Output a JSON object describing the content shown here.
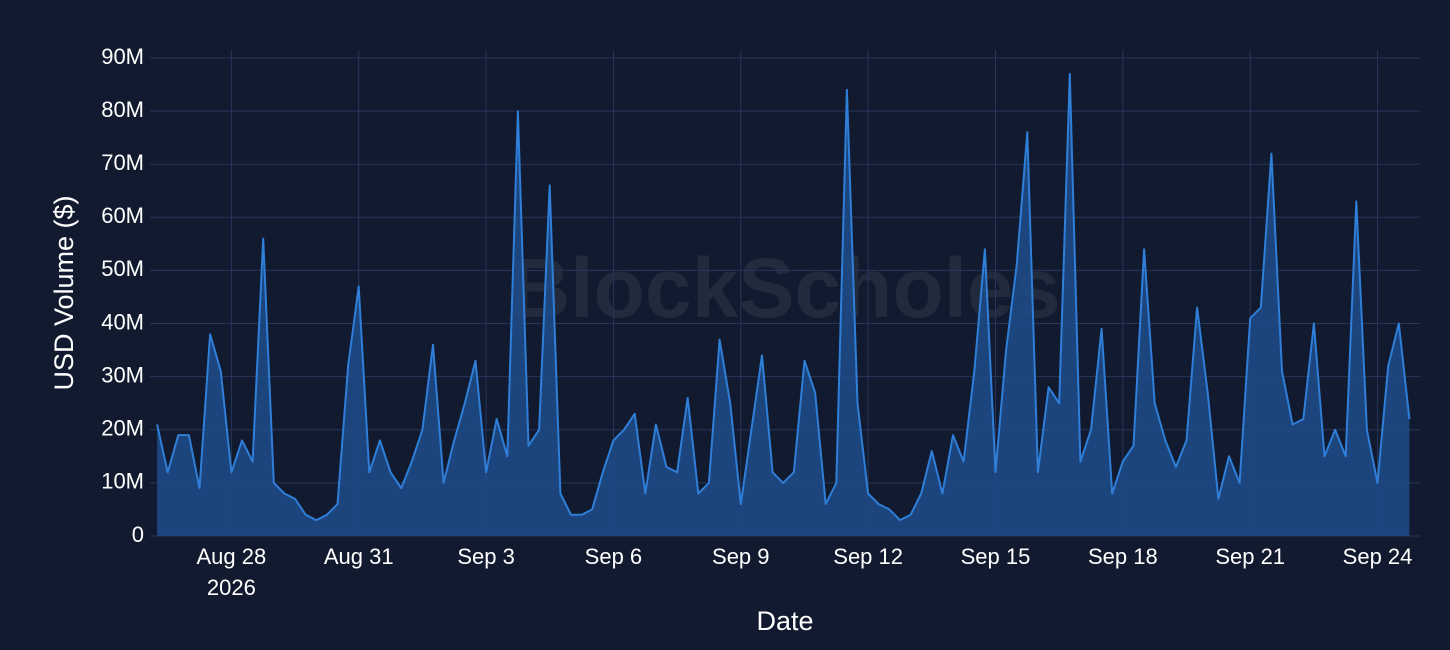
{
  "chart_data": {
    "type": "area",
    "y_label": "USD Volume ($)",
    "x_label": "Date",
    "watermark": "BlockScholes",
    "x": [
      "2026-08-26 06:00",
      "2026-08-26 12:00",
      "2026-08-26 18:00",
      "2026-08-27 00:00",
      "2026-08-27 06:00",
      "2026-08-27 12:00",
      "2026-08-27 18:00",
      "2026-08-28 00:00",
      "2026-08-28 06:00",
      "2026-08-28 12:00",
      "2026-08-28 18:00",
      "2026-08-29 00:00",
      "2026-08-29 06:00",
      "2026-08-29 12:00",
      "2026-08-29 18:00",
      "2026-08-30 00:00",
      "2026-08-30 06:00",
      "2026-08-30 12:00",
      "2026-08-30 18:00",
      "2026-08-31 00:00",
      "2026-08-31 06:00",
      "2026-08-31 12:00",
      "2026-08-31 18:00",
      "2026-09-01 00:00",
      "2026-09-01 06:00",
      "2026-09-01 12:00",
      "2026-09-01 18:00",
      "2026-09-02 00:00",
      "2026-09-02 06:00",
      "2026-09-02 12:00",
      "2026-09-02 18:00",
      "2026-09-03 00:00",
      "2026-09-03 06:00",
      "2026-09-03 12:00",
      "2026-09-03 18:00",
      "2026-09-04 00:00",
      "2026-09-04 06:00",
      "2026-09-04 12:00",
      "2026-09-04 18:00",
      "2026-09-05 00:00",
      "2026-09-05 06:00",
      "2026-09-05 12:00",
      "2026-09-05 18:00",
      "2026-09-06 00:00",
      "2026-09-06 06:00",
      "2026-09-06 12:00",
      "2026-09-06 18:00",
      "2026-09-07 00:00",
      "2026-09-07 06:00",
      "2026-09-07 12:00",
      "2026-09-07 18:00",
      "2026-09-08 00:00",
      "2026-09-08 06:00",
      "2026-09-08 12:00",
      "2026-09-08 18:00",
      "2026-09-09 00:00",
      "2026-09-09 06:00",
      "2026-09-09 12:00",
      "2026-09-09 18:00",
      "2026-09-10 00:00",
      "2026-09-10 06:00",
      "2026-09-10 12:00",
      "2026-09-10 18:00",
      "2026-09-11 00:00",
      "2026-09-11 06:00",
      "2026-09-11 12:00",
      "2026-09-11 18:00",
      "2026-09-12 00:00",
      "2026-09-12 06:00",
      "2026-09-12 12:00",
      "2026-09-12 18:00",
      "2026-09-13 00:00",
      "2026-09-13 06:00",
      "2026-09-13 12:00",
      "2026-09-13 18:00",
      "2026-09-14 00:00",
      "2026-09-14 06:00",
      "2026-09-14 12:00",
      "2026-09-14 18:00",
      "2026-09-15 00:00",
      "2026-09-15 06:00",
      "2026-09-15 12:00",
      "2026-09-15 18:00",
      "2026-09-16 00:00",
      "2026-09-16 06:00",
      "2026-09-16 12:00",
      "2026-09-16 18:00",
      "2026-09-17 00:00",
      "2026-09-17 06:00",
      "2026-09-17 12:00",
      "2026-09-17 18:00",
      "2026-09-18 00:00",
      "2026-09-18 06:00",
      "2026-09-18 12:00",
      "2026-09-18 18:00",
      "2026-09-19 00:00",
      "2026-09-19 06:00",
      "2026-09-19 12:00",
      "2026-09-19 18:00",
      "2026-09-20 00:00",
      "2026-09-20 06:00",
      "2026-09-20 12:00",
      "2026-09-20 18:00",
      "2026-09-21 00:00",
      "2026-09-21 06:00",
      "2026-09-21 12:00",
      "2026-09-21 18:00",
      "2026-09-22 00:00",
      "2026-09-22 06:00",
      "2026-09-22 12:00",
      "2026-09-22 18:00",
      "2026-09-23 00:00",
      "2026-09-23 06:00",
      "2026-09-23 12:00",
      "2026-09-23 18:00",
      "2026-09-24 00:00",
      "2026-09-24 06:00",
      "2026-09-24 12:00",
      "2026-09-24 18:00"
    ],
    "series": [
      {
        "color": "#2f7ed8",
        "fill": "#1f4a86",
        "values": [
          21,
          12,
          19,
          19,
          9,
          38,
          31,
          12,
          18,
          14,
          56,
          10,
          8,
          7,
          4,
          3,
          4,
          6,
          32,
          47,
          12,
          18,
          12,
          9,
          14,
          20,
          36,
          10,
          18,
          25,
          33,
          12,
          22,
          15,
          80,
          17,
          20,
          66,
          8,
          4,
          4,
          5,
          12,
          18,
          20,
          23,
          8,
          21,
          13,
          12,
          26,
          8,
          10,
          37,
          25,
          6,
          20,
          34,
          12,
          10,
          12,
          33,
          27,
          6,
          10,
          84,
          25,
          8,
          6,
          5,
          3,
          4,
          8,
          16,
          8,
          19,
          14,
          31,
          54,
          12,
          35,
          51,
          76,
          12,
          28,
          25,
          87,
          14,
          20,
          39,
          8,
          14,
          17,
          54,
          25,
          18,
          13,
          18,
          43,
          27,
          7,
          15,
          10,
          41,
          43,
          72,
          31,
          21,
          22,
          40,
          15,
          20,
          15,
          63,
          20,
          10,
          32,
          40,
          22
        ]
      }
    ],
    "xlim": [
      "2026-08-26 02:00",
      "2026-09-25 00:00"
    ],
    "xticks": [
      {
        "value": "2026-08-28 00:00",
        "label": "Aug 28"
      },
      {
        "value": "2026-08-31 00:00",
        "label": "Aug 31"
      },
      {
        "value": "2026-09-03 00:00",
        "label": "Sep 3"
      },
      {
        "value": "2026-09-06 00:00",
        "label": "Sep 6"
      },
      {
        "value": "2026-09-09 00:00",
        "label": "Sep 9"
      },
      {
        "value": "2026-09-12 00:00",
        "label": "Sep 12"
      },
      {
        "value": "2026-09-15 00:00",
        "label": "Sep 15"
      },
      {
        "value": "2026-09-18 00:00",
        "label": "Sep 18"
      },
      {
        "value": "2026-09-21 00:00",
        "label": "Sep 21"
      },
      {
        "value": "2026-09-24 00:00",
        "label": "Sep 24"
      }
    ],
    "x_year_label": "2026",
    "ylim": [
      0,
      91.5
    ],
    "yticks": [
      0,
      {
        "value": 10,
        "label": "10M"
      },
      {
        "value": 20,
        "label": "20M"
      },
      {
        "value": 30,
        "label": "30M"
      },
      {
        "value": 40,
        "label": "40M"
      },
      {
        "value": 50,
        "label": "50M"
      },
      {
        "value": 60,
        "label": "60M"
      },
      {
        "value": 70,
        "label": "70M"
      },
      {
        "value": 80,
        "label": "80M"
      },
      {
        "value": 90,
        "label": "90M"
      }
    ],
    "grid": true
  }
}
